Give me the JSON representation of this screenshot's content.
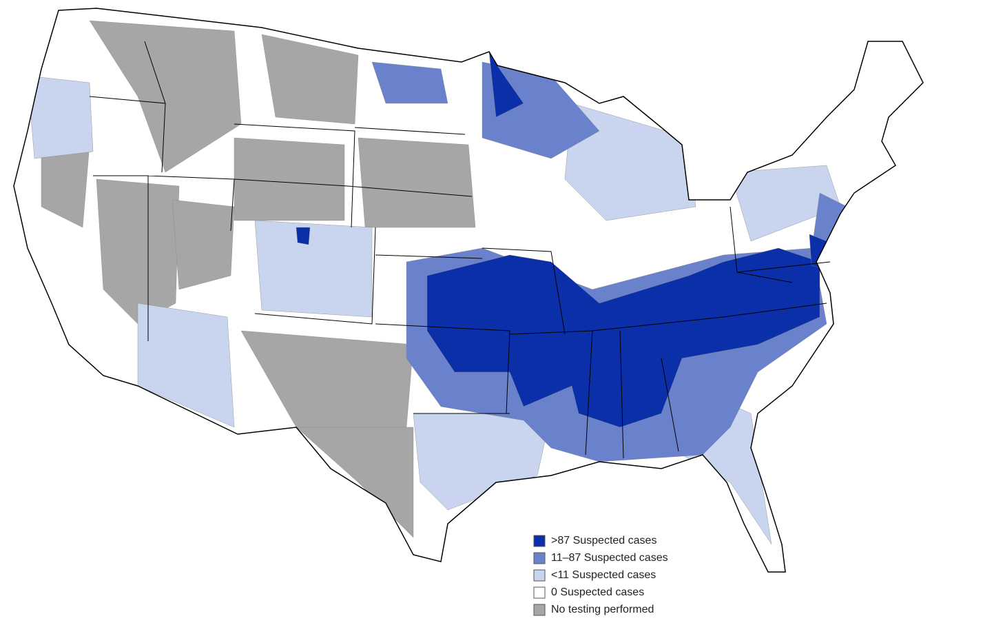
{
  "legend": {
    "items": [
      {
        "label": ">87 Suspected cases",
        "color": "#0a2fa8"
      },
      {
        "label": "11–87 Suspected cases",
        "color": "#6a82cc"
      },
      {
        "label": "<11 Suspected cases",
        "color": "#c9d4ef"
      },
      {
        "label": "0 Suspected cases",
        "color": "#ffffff"
      },
      {
        "label": "No testing performed",
        "color": "#a6a6a6"
      }
    ]
  }
}
